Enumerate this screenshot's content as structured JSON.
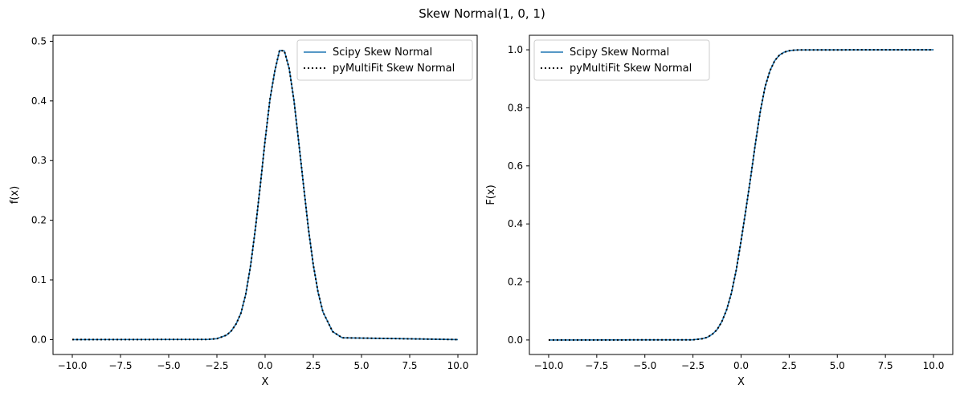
{
  "figure": {
    "title": "Skew Normal(1, 0, 1)"
  },
  "colors": {
    "scipy_line": "#1f77b4",
    "pymultifit_line": "#000000",
    "axes": "#000000",
    "background": "#ffffff"
  },
  "chart_data": [
    {
      "type": "line",
      "title": "",
      "xlabel": "X",
      "ylabel": "f(x)",
      "xlim": [
        -11,
        11
      ],
      "ylim": [
        -0.025,
        0.51
      ],
      "xticks": [
        -10.0,
        -7.5,
        -5.0,
        -2.5,
        0.0,
        2.5,
        5.0,
        7.5,
        10.0
      ],
      "xtick_labels": [
        "−10.0",
        "−7.5",
        "−5.0",
        "−2.5",
        "0.0",
        "2.5",
        "5.0",
        "7.5",
        "10.0"
      ],
      "yticks": [
        0.0,
        0.1,
        0.2,
        0.3,
        0.4,
        0.5
      ],
      "ytick_labels": [
        "0.0",
        "0.1",
        "0.2",
        "0.3",
        "0.4",
        "0.5"
      ],
      "grid": false,
      "legend_position": "upper right",
      "series": [
        {
          "name": "Scipy Skew Normal",
          "style": "solid",
          "x": [
            -10,
            -3,
            -2.5,
            -2,
            -1.75,
            -1.5,
            -1.25,
            -1,
            -0.75,
            -0.5,
            -0.25,
            0,
            0.25,
            0.5,
            0.75,
            1,
            1.25,
            1.5,
            1.75,
            2,
            2.25,
            2.5,
            2.75,
            3,
            3.5,
            4,
            10
          ],
          "y": [
            0,
            0.0002,
            0.0015,
            0.0074,
            0.0146,
            0.0264,
            0.0445,
            0.0766,
            0.1245,
            0.1868,
            0.2583,
            0.3338,
            0.4022,
            0.4496,
            0.4848,
            0.4837,
            0.4543,
            0.4,
            0.329,
            0.2567,
            0.1849,
            0.125,
            0.079,
            0.0463,
            0.0134,
            0.003,
            0
          ]
        },
        {
          "name": "pyMultiFit Skew Normal",
          "style": "dotted",
          "x": [
            -10,
            -3,
            -2.5,
            -2,
            -1.75,
            -1.5,
            -1.25,
            -1,
            -0.75,
            -0.5,
            -0.25,
            0,
            0.25,
            0.5,
            0.75,
            1,
            1.25,
            1.5,
            1.75,
            2,
            2.25,
            2.5,
            2.75,
            3,
            3.5,
            4,
            10
          ],
          "y": [
            0,
            0.0002,
            0.0015,
            0.0074,
            0.0146,
            0.0264,
            0.0445,
            0.0766,
            0.1245,
            0.1868,
            0.2583,
            0.3338,
            0.4022,
            0.4496,
            0.4848,
            0.4837,
            0.4543,
            0.4,
            0.329,
            0.2567,
            0.1849,
            0.125,
            0.079,
            0.0463,
            0.0134,
            0.003,
            0
          ]
        }
      ]
    },
    {
      "type": "line",
      "title": "",
      "xlabel": "X",
      "ylabel": "F(x)",
      "xlim": [
        -11,
        11
      ],
      "ylim": [
        -0.05,
        1.05
      ],
      "xticks": [
        -10.0,
        -7.5,
        -5.0,
        -2.5,
        0.0,
        2.5,
        5.0,
        7.5,
        10.0
      ],
      "xtick_labels": [
        "−10.0",
        "−7.5",
        "−5.0",
        "−2.5",
        "0.0",
        "2.5",
        "5.0",
        "7.5",
        "10.0"
      ],
      "yticks": [
        0.0,
        0.2,
        0.4,
        0.6,
        0.8,
        1.0
      ],
      "ytick_labels": [
        "0.0",
        "0.2",
        "0.4",
        "0.6",
        "0.8",
        "1.0"
      ],
      "grid": false,
      "legend_position": "upper left",
      "series": [
        {
          "name": "Scipy Skew Normal",
          "style": "solid",
          "x": [
            -10,
            -2.5,
            -2,
            -1.75,
            -1.5,
            -1.25,
            -1,
            -0.75,
            -0.5,
            -0.25,
            0,
            0.25,
            0.5,
            0.75,
            1,
            1.25,
            1.5,
            1.75,
            2,
            2.25,
            2.5,
            2.75,
            3,
            10
          ],
          "y": [
            0,
            0.0005,
            0.0046,
            0.0094,
            0.0196,
            0.0354,
            0.0632,
            0.104,
            0.1619,
            0.2417,
            0.3414,
            0.4492,
            0.5611,
            0.6797,
            0.7881,
            0.8729,
            0.9276,
            0.9627,
            0.9822,
            0.992,
            0.9968,
            0.9988,
            0.9996,
            1.0
          ]
        },
        {
          "name": "pyMultiFit Skew Normal",
          "style": "dotted",
          "x": [
            -10,
            -2.5,
            -2,
            -1.75,
            -1.5,
            -1.25,
            -1,
            -0.75,
            -0.5,
            -0.25,
            0,
            0.25,
            0.5,
            0.75,
            1,
            1.25,
            1.5,
            1.75,
            2,
            2.25,
            2.5,
            2.75,
            3,
            10
          ],
          "y": [
            0,
            0.0005,
            0.0046,
            0.0094,
            0.0196,
            0.0354,
            0.0632,
            0.104,
            0.1619,
            0.2417,
            0.3414,
            0.4492,
            0.5611,
            0.6797,
            0.7881,
            0.8729,
            0.9276,
            0.9627,
            0.9822,
            0.992,
            0.9968,
            0.9988,
            0.9996,
            1.0
          ]
        }
      ]
    }
  ]
}
